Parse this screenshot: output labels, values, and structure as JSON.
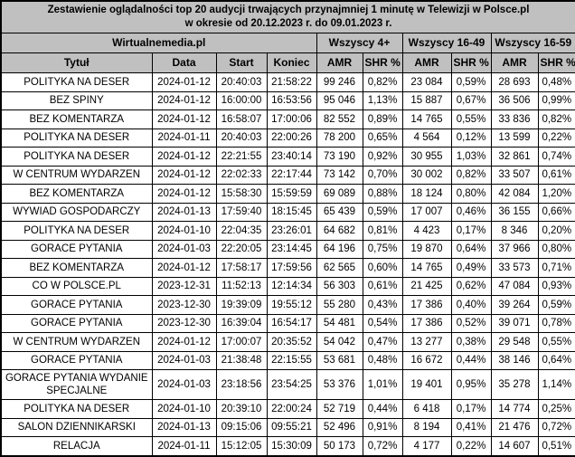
{
  "title": {
    "line1": "Zestawienie oglądalności top 20 audycji trwających przynajmniej 1 minutę w Telewizji w Polsce.pl",
    "line2": "w okresie od 20.12.2023 r. do 09.01.2023 r."
  },
  "header": {
    "source_label": "Wirtualnemedia.pl",
    "groups": [
      "Wszyscy 4+",
      "Wszyscy 16-49",
      "Wszyscy 16-59"
    ],
    "columns": [
      "Tytuł",
      "Data",
      "Start",
      "Koniec",
      "AMR",
      "SHR %",
      "AMR",
      "SHR %",
      "AMR",
      "SHR %"
    ]
  },
  "colors": {
    "header_bg": "#c0c0c0",
    "border": "#000000",
    "row_bg": "#ffffff",
    "text": "#000000"
  },
  "chart_data": {
    "type": "table",
    "title": "Zestawienie oglądalności top 20 audycji trwających przynajmniej 1 minutę w Telewizji w Polsce.pl w okresie od 20.12.2023 r. do 09.01.2023 r.",
    "column_groups": [
      {
        "label": "Wirtualnemedia.pl",
        "span": 4
      },
      {
        "label": "Wszyscy 4+",
        "span": 2
      },
      {
        "label": "Wszyscy 16-49",
        "span": 2
      },
      {
        "label": "Wszyscy 16-59",
        "span": 2
      }
    ],
    "columns": [
      "Tytuł",
      "Data",
      "Start",
      "Koniec",
      "AMR",
      "SHR %",
      "AMR",
      "SHR %",
      "AMR",
      "SHR %"
    ],
    "rows": [
      [
        "POLITYKA NA DESER",
        "2024-01-12",
        "20:40:03",
        "21:58:22",
        "99 246",
        "0,82%",
        "23 084",
        "0,59%",
        "28 693",
        "0,48%"
      ],
      [
        "BEZ SPINY",
        "2024-01-12",
        "16:00:00",
        "16:53:56",
        "95 046",
        "1,13%",
        "15 887",
        "0,67%",
        "36 506",
        "0,99%"
      ],
      [
        "BEZ KOMENTARZA",
        "2024-01-12",
        "16:58:07",
        "17:00:06",
        "82 552",
        "0,89%",
        "14 765",
        "0,55%",
        "33 836",
        "0,82%"
      ],
      [
        "POLITYKA NA DESER",
        "2024-01-11",
        "20:40:03",
        "22:00:26",
        "78 200",
        "0,65%",
        "4 564",
        "0,12%",
        "13 599",
        "0,22%"
      ],
      [
        "POLITYKA NA DESER",
        "2024-01-12",
        "22:21:55",
        "23:40:14",
        "73 190",
        "0,92%",
        "30 955",
        "1,03%",
        "32 861",
        "0,74%"
      ],
      [
        "W CENTRUM WYDARZEN",
        "2024-01-12",
        "22:02:33",
        "22:17:44",
        "73 142",
        "0,70%",
        "30 002",
        "0,82%",
        "33 507",
        "0,61%"
      ],
      [
        "BEZ KOMENTARZA",
        "2024-01-12",
        "15:58:30",
        "15:59:59",
        "69 089",
        "0,88%",
        "18 124",
        "0,80%",
        "42 084",
        "1,20%"
      ],
      [
        "WYWIAD GOSPODARCZY",
        "2024-01-13",
        "17:59:40",
        "18:15:45",
        "65 439",
        "0,59%",
        "17 007",
        "0,46%",
        "36 155",
        "0,66%"
      ],
      [
        "POLITYKA NA DESER",
        "2024-01-10",
        "22:04:35",
        "23:26:01",
        "64 682",
        "0,81%",
        "4 423",
        "0,17%",
        "8 346",
        "0,20%"
      ],
      [
        "GORACE PYTANIA",
        "2024-01-03",
        "22:20:05",
        "23:14:45",
        "64 196",
        "0,75%",
        "19 870",
        "0,64%",
        "37 966",
        "0,80%"
      ],
      [
        "BEZ KOMENTARZA",
        "2024-01-12",
        "17:58:17",
        "17:59:56",
        "62 565",
        "0,60%",
        "14 765",
        "0,49%",
        "33 573",
        "0,71%"
      ],
      [
        "CO W POLSCE.PL",
        "2023-12-31",
        "11:52:13",
        "12:14:34",
        "56 303",
        "0,61%",
        "21 425",
        "0,62%",
        "47 084",
        "0,93%"
      ],
      [
        "GORACE PYTANIA",
        "2023-12-30",
        "19:39:09",
        "19:55:12",
        "55 280",
        "0,43%",
        "17 386",
        "0,40%",
        "39 264",
        "0,59%"
      ],
      [
        "GORACE PYTANIA",
        "2023-12-30",
        "16:39:04",
        "16:54:17",
        "54 481",
        "0,54%",
        "17 386",
        "0,52%",
        "39 071",
        "0,78%"
      ],
      [
        "W CENTRUM WYDARZEN",
        "2024-01-12",
        "17:00:07",
        "20:35:52",
        "54 042",
        "0,47%",
        "13 277",
        "0,38%",
        "29 548",
        "0,55%"
      ],
      [
        "GORACE PYTANIA",
        "2024-01-03",
        "21:38:48",
        "22:15:55",
        "53 681",
        "0,48%",
        "16 672",
        "0,44%",
        "38 146",
        "0,64%"
      ],
      [
        "GORACE PYTANIA WYDANIE SPECJALNE",
        "2024-01-03",
        "23:18:56",
        "23:54:25",
        "53 376",
        "1,01%",
        "19 401",
        "0,95%",
        "35 278",
        "1,14%"
      ],
      [
        "POLITYKA NA DESER",
        "2024-01-10",
        "20:39:10",
        "22:00:24",
        "52 719",
        "0,44%",
        "6 418",
        "0,17%",
        "14 774",
        "0,25%"
      ],
      [
        "SALON DZIENNIKARSKI",
        "2024-01-13",
        "09:15:06",
        "09:55:21",
        "52 496",
        "0,91%",
        "8 194",
        "0,41%",
        "21 476",
        "0,72%"
      ],
      [
        "RELACJA",
        "2024-01-11",
        "15:12:05",
        "15:30:09",
        "50 173",
        "0,72%",
        "4 177",
        "0,22%",
        "14 607",
        "0,51%"
      ]
    ]
  }
}
